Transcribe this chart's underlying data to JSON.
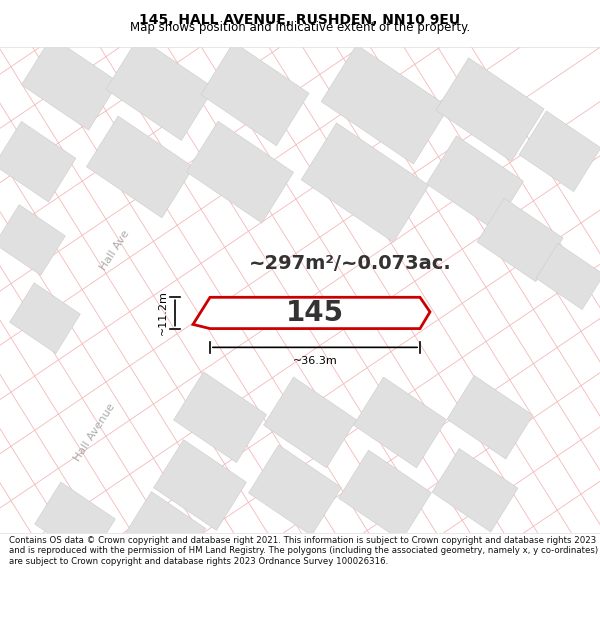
{
  "title_line1": "145, HALL AVENUE, RUSHDEN, NN10 9EU",
  "title_line2": "Map shows position and indicative extent of the property.",
  "footer_text": "Contains OS data © Crown copyright and database right 2021. This information is subject to Crown copyright and database rights 2023 and is reproduced with the permission of HM Land Registry. The polygons (including the associated geometry, namely x, y co-ordinates) are subject to Crown copyright and database rights 2023 Ordnance Survey 100026316.",
  "area_text": "~297m²/~0.073ac.",
  "property_label": "145",
  "dim_width": "~36.3m",
  "dim_height": "~11.2m",
  "road_label_upper": "Hall Ave",
  "road_label_lower": "Hall Avenue",
  "grid_line_color": "#f5b8b8",
  "property_edge_color": "#cc0000",
  "block_color": "#e0e0e0",
  "block_edge_color": "#cccccc",
  "map_bg": "#ffffff",
  "title_bg": "#ffffff",
  "footer_bg": "#ffffff",
  "title_fontsize": 10,
  "subtitle_fontsize": 8.5,
  "area_fontsize": 14,
  "label_fontsize": 20,
  "footer_fontsize": 6.2,
  "road_label_color": "#aaaaaa",
  "dim_color": "#000000",
  "label_color": "#333333"
}
